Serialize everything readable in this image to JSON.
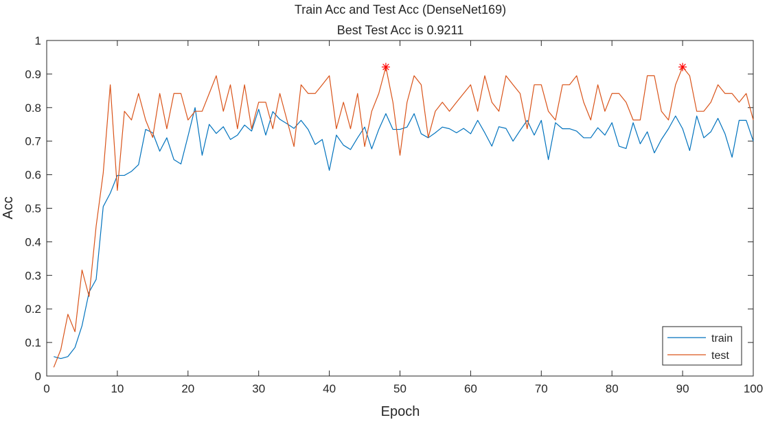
{
  "chart_data": {
    "type": "line",
    "title": "Train Acc and Test Acc (DenseNet169)",
    "subtitle": "Best Test Acc is 0.9211",
    "xlabel": "Epoch",
    "ylabel": "Acc",
    "xlim": [
      0,
      100
    ],
    "ylim": [
      0,
      1
    ],
    "xticks": [
      "0",
      "10",
      "20",
      "30",
      "40",
      "50",
      "60",
      "70",
      "80",
      "90",
      "100"
    ],
    "yticks": [
      "0",
      "0.1",
      "0.2",
      "0.3",
      "0.4",
      "0.5",
      "0.6",
      "0.7",
      "0.8",
      "0.9",
      "1"
    ],
    "grid": false,
    "legend_position": "bottom-right",
    "series": [
      {
        "name": "train",
        "color": "#0072BD",
        "x": [
          1,
          2,
          3,
          4,
          5,
          6,
          7,
          8,
          9,
          10,
          11,
          12,
          13,
          14,
          15,
          16,
          17,
          18,
          19,
          20,
          21,
          22,
          23,
          24,
          25,
          26,
          27,
          28,
          29,
          30,
          31,
          32,
          33,
          34,
          35,
          36,
          37,
          38,
          39,
          40,
          41,
          42,
          43,
          44,
          45,
          46,
          47,
          48,
          49,
          50,
          51,
          52,
          53,
          54,
          55,
          56,
          57,
          58,
          59,
          60,
          61,
          62,
          63,
          64,
          65,
          66,
          67,
          68,
          69,
          70,
          71,
          72,
          73,
          74,
          75,
          76,
          77,
          78,
          79,
          80,
          81,
          82,
          83,
          84,
          85,
          86,
          87,
          88,
          89,
          90,
          91,
          92,
          93,
          94,
          95,
          96,
          97,
          98,
          99,
          100
        ],
        "values": [
          0.058,
          0.052,
          0.058,
          0.085,
          0.15,
          0.25,
          0.288,
          0.505,
          0.545,
          0.598,
          0.598,
          0.61,
          0.63,
          0.735,
          0.725,
          0.67,
          0.71,
          0.645,
          0.632,
          0.715,
          0.8,
          0.658,
          0.75,
          0.723,
          0.743,
          0.705,
          0.718,
          0.748,
          0.73,
          0.795,
          0.718,
          0.788,
          0.765,
          0.752,
          0.738,
          0.762,
          0.735,
          0.69,
          0.705,
          0.613,
          0.718,
          0.688,
          0.675,
          0.71,
          0.742,
          0.677,
          0.735,
          0.782,
          0.735,
          0.735,
          0.742,
          0.782,
          0.722,
          0.71,
          0.725,
          0.742,
          0.737,
          0.725,
          0.738,
          0.722,
          0.762,
          0.725,
          0.685,
          0.743,
          0.738,
          0.7,
          0.732,
          0.762,
          0.718,
          0.762,
          0.645,
          0.755,
          0.737,
          0.737,
          0.73,
          0.71,
          0.71,
          0.74,
          0.718,
          0.755,
          0.685,
          0.678,
          0.755,
          0.692,
          0.728,
          0.665,
          0.705,
          0.737,
          0.775,
          0.737,
          0.672,
          0.775,
          0.71,
          0.728,
          0.768,
          0.722,
          0.652,
          0.762,
          0.762,
          0.7
        ]
      },
      {
        "name": "test",
        "color": "#D95319",
        "x": [
          1,
          2,
          3,
          4,
          5,
          6,
          7,
          8,
          9,
          10,
          11,
          12,
          13,
          14,
          15,
          16,
          17,
          18,
          19,
          20,
          21,
          22,
          23,
          24,
          25,
          26,
          27,
          28,
          29,
          30,
          31,
          32,
          33,
          34,
          35,
          36,
          37,
          38,
          39,
          40,
          41,
          42,
          43,
          44,
          45,
          46,
          47,
          48,
          49,
          50,
          51,
          52,
          53,
          54,
          55,
          56,
          57,
          58,
          59,
          60,
          61,
          62,
          63,
          64,
          65,
          66,
          67,
          68,
          69,
          70,
          71,
          72,
          73,
          74,
          75,
          76,
          77,
          78,
          79,
          80,
          81,
          82,
          83,
          84,
          85,
          86,
          87,
          88,
          89,
          90,
          91,
          92,
          93,
          94,
          95,
          96,
          97,
          98,
          99,
          100
        ],
        "values": [
          0.026,
          0.079,
          0.184,
          0.132,
          0.316,
          0.237,
          0.447,
          0.605,
          0.868,
          0.553,
          0.789,
          0.763,
          0.842,
          0.763,
          0.711,
          0.842,
          0.737,
          0.842,
          0.842,
          0.763,
          0.789,
          0.789,
          0.842,
          0.895,
          0.789,
          0.868,
          0.737,
          0.868,
          0.737,
          0.816,
          0.816,
          0.737,
          0.842,
          0.763,
          0.684,
          0.868,
          0.842,
          0.842,
          0.868,
          0.895,
          0.737,
          0.816,
          0.737,
          0.842,
          0.684,
          0.789,
          0.842,
          0.921,
          0.816,
          0.658,
          0.816,
          0.895,
          0.868,
          0.711,
          0.789,
          0.816,
          0.789,
          0.816,
          0.842,
          0.868,
          0.789,
          0.895,
          0.816,
          0.789,
          0.895,
          0.868,
          0.842,
          0.737,
          0.868,
          0.868,
          0.789,
          0.763,
          0.868,
          0.868,
          0.895,
          0.816,
          0.763,
          0.868,
          0.789,
          0.842,
          0.842,
          0.816,
          0.763,
          0.763,
          0.895,
          0.895,
          0.789,
          0.763,
          0.868,
          0.921,
          0.895,
          0.789,
          0.789,
          0.816,
          0.868,
          0.842,
          0.842,
          0.816,
          0.842,
          0.763
        ]
      }
    ],
    "markers": [
      {
        "x": 48,
        "y": 0.921,
        "symbol": "*",
        "color": "#FF0000"
      },
      {
        "x": 90,
        "y": 0.921,
        "symbol": "*",
        "color": "#FF0000"
      }
    ]
  }
}
